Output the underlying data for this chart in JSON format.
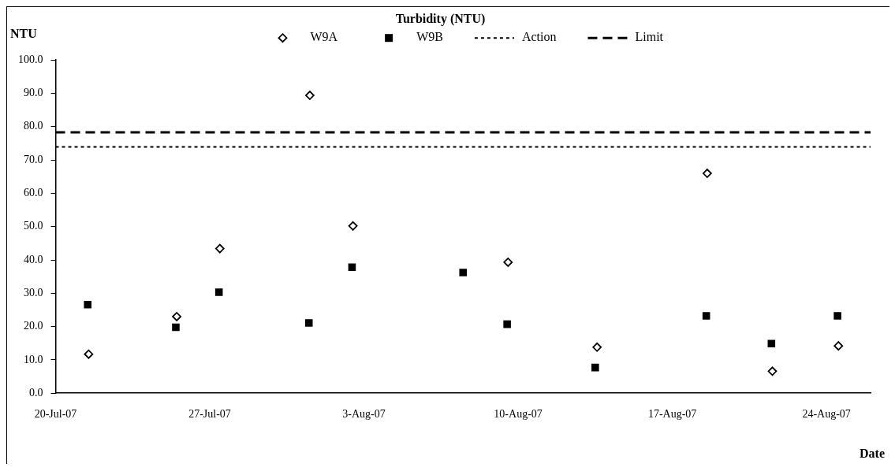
{
  "chart_data": {
    "type": "scatter",
    "title": "Turbidity (NTU)",
    "xlabel": "Date",
    "ylabel": "NTU",
    "xlim": [
      "--07-20",
      "--08-26"
    ],
    "xticks": [
      {
        "value": "--07-20",
        "label": "20-Jul-07"
      },
      {
        "value": "--07-27",
        "label": "27-Jul-07"
      },
      {
        "value": "--08-03",
        "label": "3-Aug-07"
      },
      {
        "value": "--08-10",
        "label": "10-Aug-07"
      },
      {
        "value": "--08-17",
        "label": "17-Aug-07"
      },
      {
        "value": "--08-24",
        "label": "24-Aug-07"
      }
    ],
    "ylim": [
      0,
      100
    ],
    "yticks": [
      {
        "value": 0,
        "label": "0.0"
      },
      {
        "value": 10,
        "label": "10.0"
      },
      {
        "value": 20,
        "label": "20.0"
      },
      {
        "value": 30,
        "label": "30.0"
      },
      {
        "value": 40,
        "label": "40.0"
      },
      {
        "value": 50,
        "label": "50.0"
      },
      {
        "value": 60,
        "label": "60.0"
      },
      {
        "value": 70,
        "label": "70.0"
      },
      {
        "value": 80,
        "label": "80.0"
      },
      {
        "value": 90,
        "label": "90.0"
      },
      {
        "value": 100,
        "label": "100.0"
      }
    ],
    "grid": false,
    "legend": "top",
    "series": [
      {
        "name": "W9A",
        "color": "#000000",
        "marker": "diamond",
        "x": [
          "--07-21T12:00",
          "--07-25T12:00",
          "--07-27T11:00",
          "--07-31T13:00",
          "--08-02T12:00",
          "--08-09T13:00",
          "--08-13T14:00",
          "--08-18T14:00",
          "--08-21T13:00",
          "--08-24T13:00"
        ],
        "values": [
          11.7,
          23.0,
          43.4,
          89.4,
          50.2,
          39.3,
          13.8,
          66.0,
          6.6,
          14.2
        ]
      },
      {
        "name": "W9B",
        "color": "#000000",
        "marker": "square",
        "x": [
          "--07-21T11:00",
          "--07-25T11:00",
          "--07-27T10:00",
          "--07-31T12:00",
          "--08-02T11:00",
          "--08-07T12:00",
          "--08-09T12:00",
          "--08-13T12:00",
          "--08-18T13:00",
          "--08-21T12:00",
          "--08-24T12:00"
        ],
        "values": [
          26.6,
          19.8,
          30.3,
          21.1,
          37.8,
          36.2,
          20.7,
          7.7,
          23.2,
          14.9,
          23.2
        ]
      }
    ],
    "ref_lines": [
      {
        "axis": "y",
        "value": 73.9,
        "label": "Action",
        "color": "#000000",
        "line_style": "dotted"
      },
      {
        "axis": "y",
        "value": 78.3,
        "label": "Limit",
        "color": "#000000",
        "line_style": "dashed"
      }
    ]
  }
}
